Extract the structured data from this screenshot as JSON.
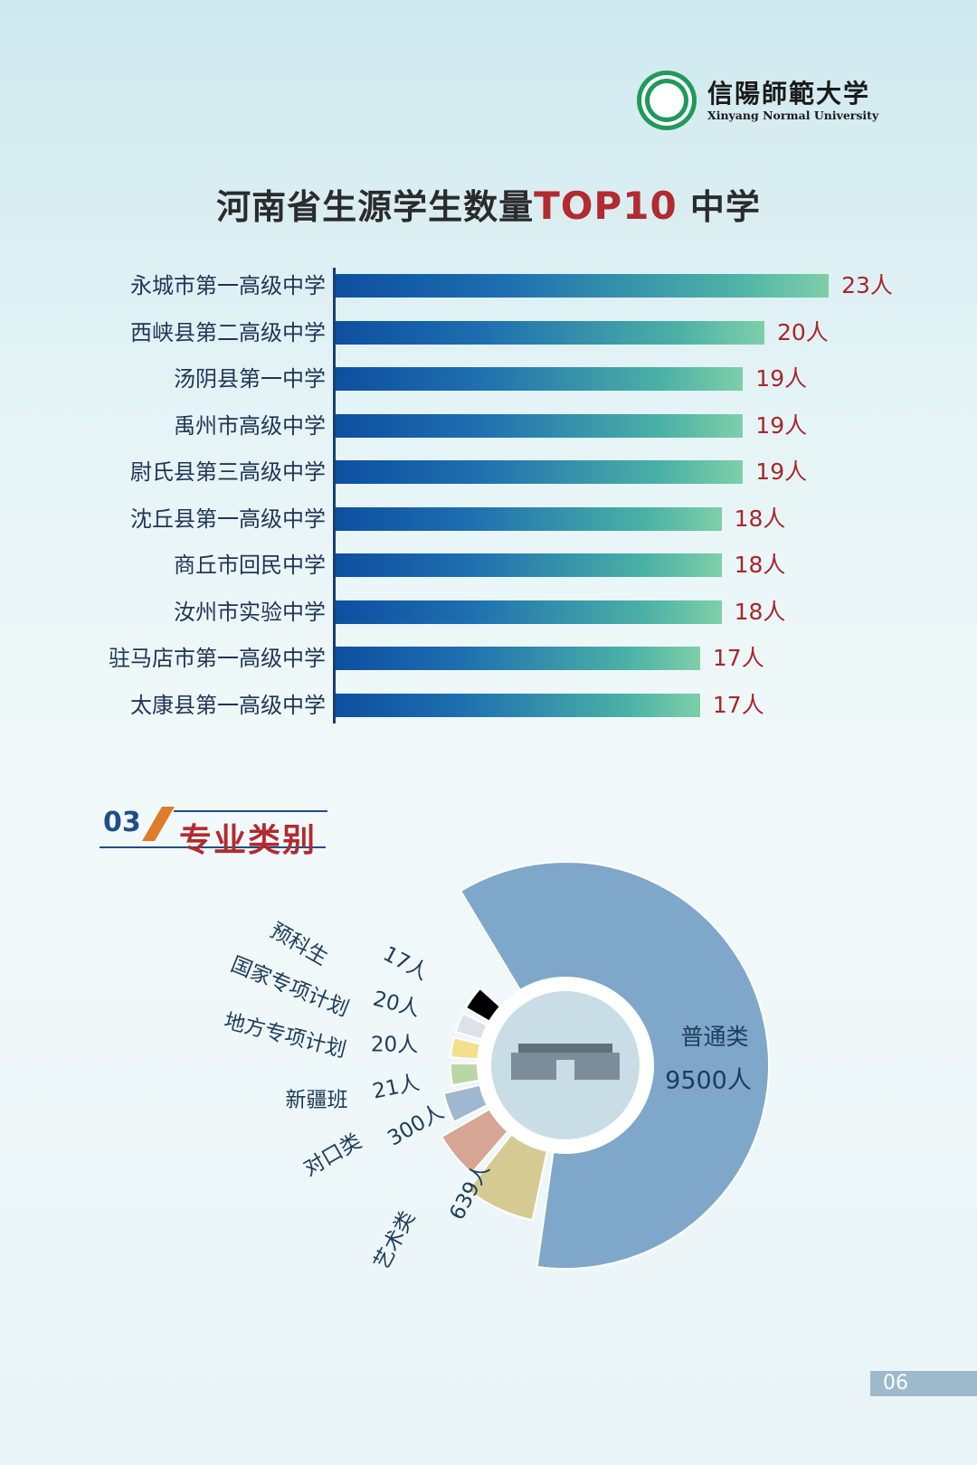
{
  "logo": {
    "name_cn": "信陽師範大学",
    "name_en": "Xinyang Normal University"
  },
  "colors": {
    "accent_red": "#b32a2f",
    "navy": "#1d4f86",
    "bar_start": "#0d4fa0",
    "bar_end": "#7ecfa8",
    "section_slash": "#e07b2a"
  },
  "chart_data": [
    {
      "type": "bar",
      "orientation": "horizontal",
      "title_prefix": "河南省生源学生数量",
      "title_highlight": "TOP10",
      "title_suffix": "中学",
      "categories": [
        "永城市第一高级中学",
        "西峡县第二高级中学",
        "汤阴县第一中学",
        "禹州市高级中学",
        "尉氏县第三高级中学",
        "沈丘县第一高级中学",
        "商丘市回民中学",
        "汝州市实验中学",
        "驻马店市第一高级中学",
        "太康县第一高级中学"
      ],
      "values": [
        23,
        20,
        19,
        19,
        19,
        18,
        18,
        18,
        17,
        17
      ],
      "value_labels": [
        "23人",
        "20人",
        "19人",
        "19人",
        "19人",
        "18人",
        "18人",
        "18人",
        "17人",
        "17人"
      ]
    },
    {
      "type": "pie",
      "variant": "donut",
      "section_number": "03",
      "section_title": "专业类别",
      "categories": [
        "普通类",
        "艺术类",
        "对口类",
        "新疆班",
        "地方专项计划",
        "国家专项计划",
        "预科生"
      ],
      "values": [
        9500,
        639,
        300,
        21,
        20,
        20,
        17
      ],
      "value_labels": [
        "9500人",
        "639人",
        "300人",
        "21人",
        "20人",
        "20人",
        "17人"
      ],
      "colors": [
        "#7fa7c9",
        "#d6ca93",
        "#d6a593",
        "#9fb7cf",
        "#b9d7a4",
        "#f2e08f",
        "#dde2ea"
      ]
    }
  ],
  "page_number": "06"
}
